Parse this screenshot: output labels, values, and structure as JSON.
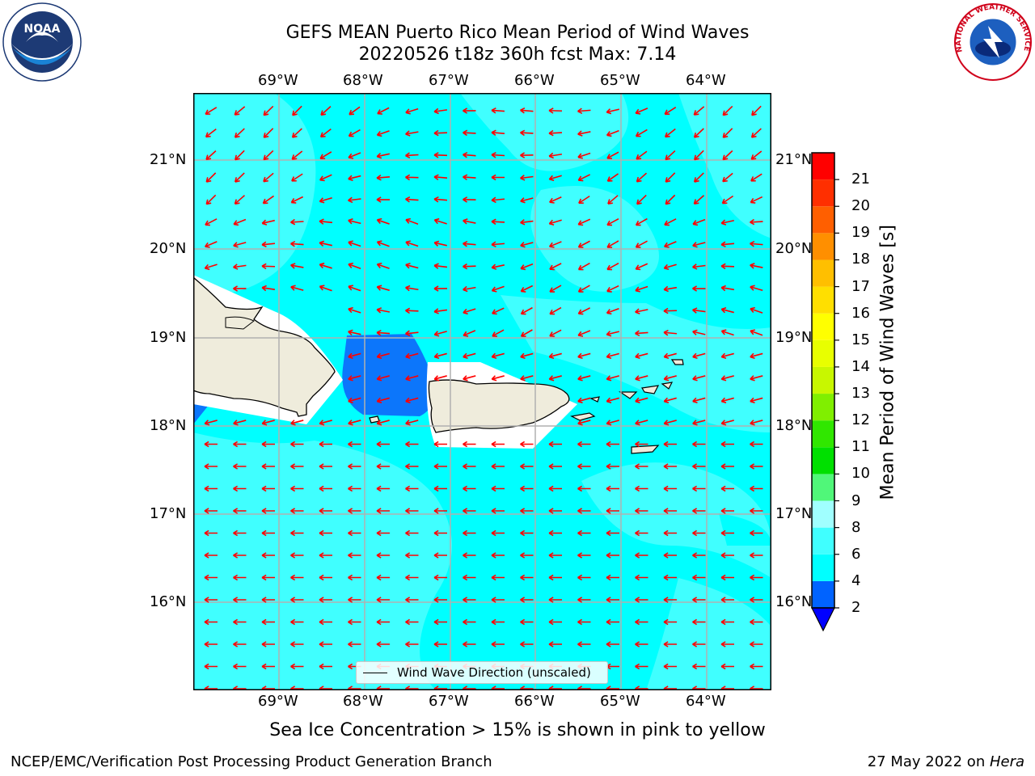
{
  "title": {
    "line1": "GEFS MEAN Puerto Rico Mean Period of Wind Waves",
    "line2": "20220526 t18z 360h fcst   Max: 7.14"
  },
  "map": {
    "lon_labels": [
      "69°W",
      "68°W",
      "67°W",
      "66°W",
      "65°W",
      "64°W"
    ],
    "lat_labels": [
      "21°N",
      "20°N",
      "19°N",
      "18°N",
      "17°N",
      "16°N"
    ],
    "legend_label": "Wind Wave Direction (unscaled)",
    "vector_color": "#ff0000",
    "background_fill": "#00ffff",
    "land_color": "#efecdc",
    "low_period_color": "#0c76fb"
  },
  "colorbar": {
    "title": "Mean Period of Wind Waves [s]",
    "ticks": [
      "2",
      "4",
      "6",
      "8",
      "9",
      "10",
      "11",
      "12",
      "13",
      "14",
      "15",
      "16",
      "17",
      "18",
      "19",
      "20",
      "21"
    ],
    "colors": [
      "#0063ff",
      "#00ffff",
      "#40ffff",
      "#a0ffff",
      "#50f779",
      "#00e000",
      "#30e700",
      "#80ef00",
      "#c8f700",
      "#e8ff00",
      "#ffff00",
      "#ffdf00",
      "#ffbf00",
      "#ff8f00",
      "#ff5f00",
      "#ff2f00",
      "#ff0000"
    ],
    "extend_color": "#0000ff"
  },
  "subnote": "Sea Ice Concentration > 15% is shown in pink to yellow",
  "footer": {
    "left": "NCEP/EMC/Verification Post Processing Product Generation Branch",
    "right_prefix": "27 May 2022 on ",
    "right_machine": "Hera"
  },
  "logos": {
    "noaa_text": "NOAA",
    "nws_text": "NATIONAL WEATHER SERVICE"
  }
}
